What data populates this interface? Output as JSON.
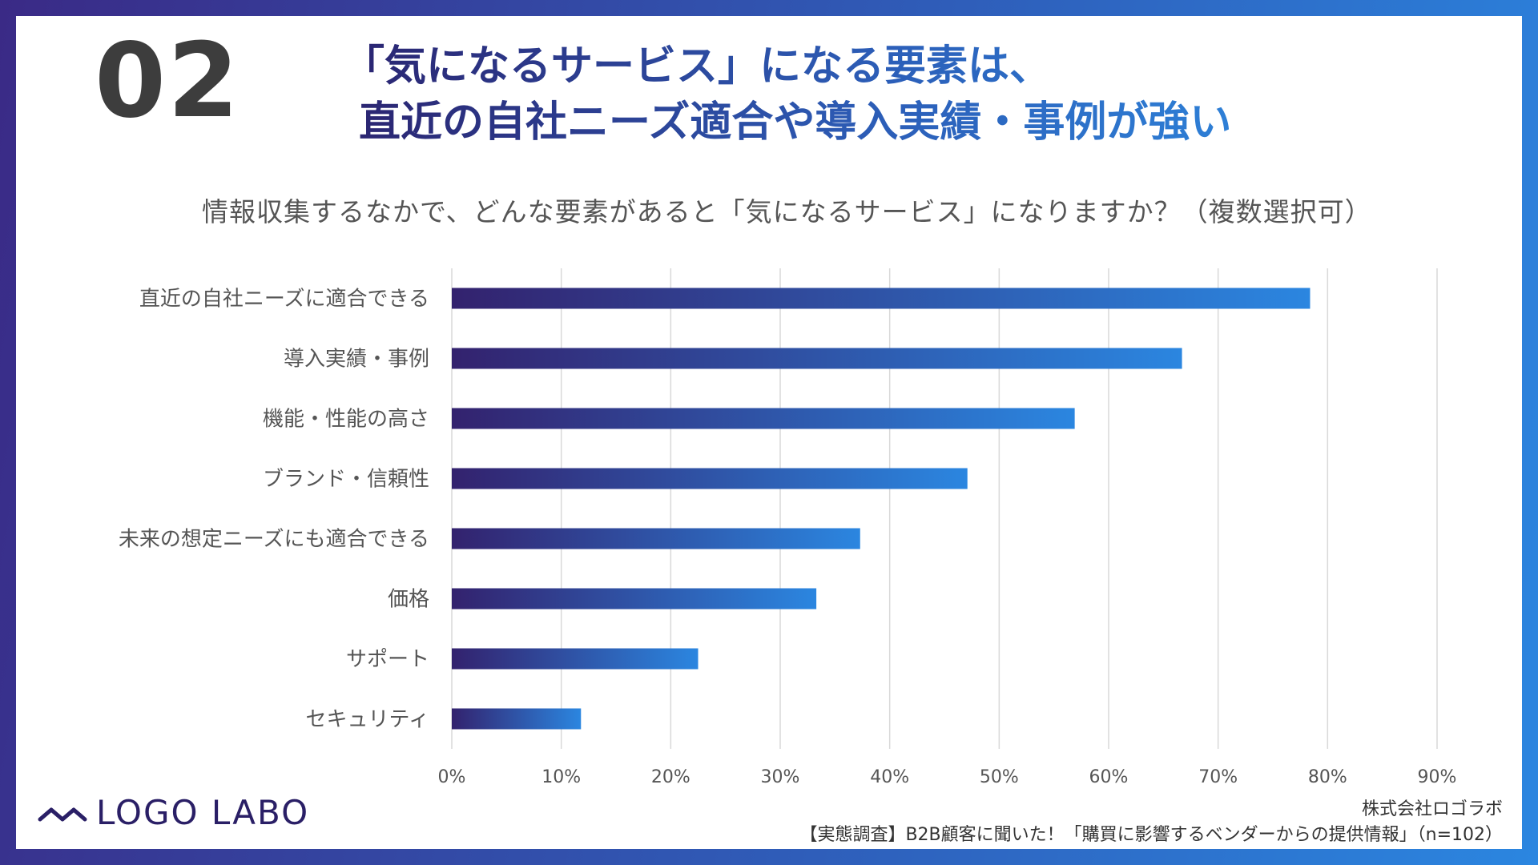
{
  "slide_number": "02",
  "headline": {
    "line1": "「気になるサービス」になる要素は、",
    "line2": "直近の自社ニーズ適合や導入実績・事例が強い"
  },
  "chart_data": {
    "type": "bar",
    "orientation": "horizontal",
    "title": "情報収集するなかで、どんな要素があると「気になるサービス」になりますか？（複数選択可）",
    "categories": [
      "直近の自社ニーズに適合できる",
      "導入実績・事例",
      "機能・性能の高さ",
      "ブランド・信頼性",
      "未来の想定ニーズにも適合できる",
      "価格",
      "サポート",
      "セキュリティ"
    ],
    "values": [
      78.4,
      66.7,
      56.9,
      47.1,
      37.3,
      33.3,
      22.5,
      11.8
    ],
    "unit": "%",
    "xlim": [
      0,
      90
    ],
    "ticks": [
      0,
      10,
      20,
      30,
      40,
      50,
      60,
      70,
      80,
      90
    ],
    "tick_labels": [
      "0%",
      "10%",
      "20%",
      "30%",
      "40%",
      "50%",
      "60%",
      "70%",
      "80%",
      "90%"
    ],
    "grid": true,
    "bar_gradient": [
      "#33226e",
      "#2b86e0"
    ]
  },
  "logo": {
    "text": "LOGO LABO",
    "brand_color": "#2a1f66"
  },
  "footer": {
    "company": "株式会社ロゴラボ",
    "source": "【実態調査】B2B顧客に聞いた！「購買に影響するベンダーからの提供情報」（n=102）"
  }
}
